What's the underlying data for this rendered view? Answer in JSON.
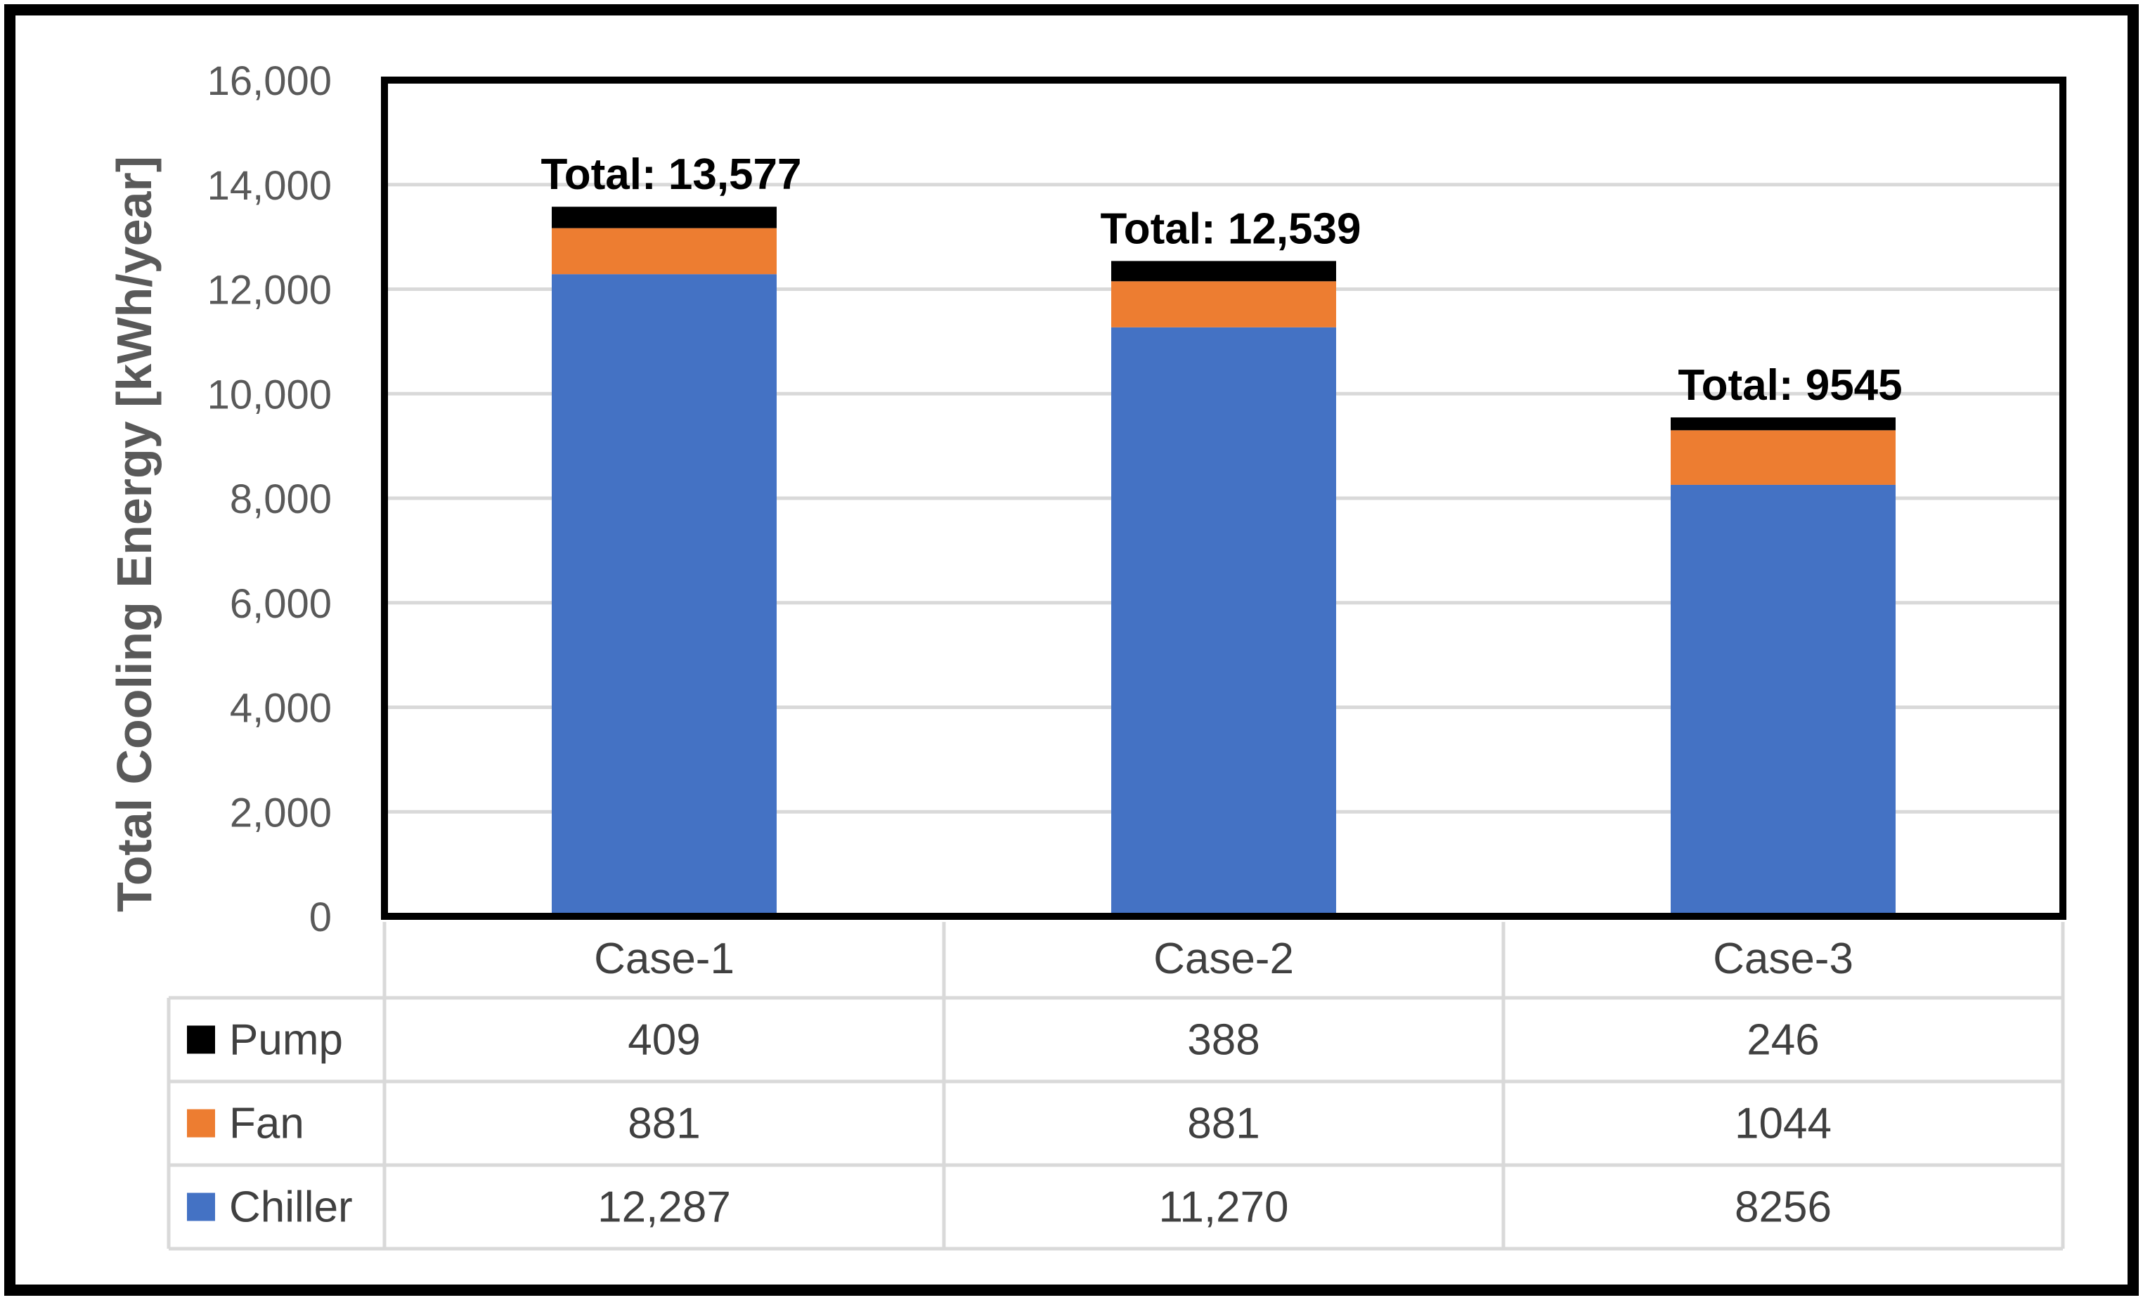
{
  "chart_data": {
    "type": "bar",
    "stacked": true,
    "ylabel": "Total Cooling Energy [kWh/year]",
    "ylim": [
      0,
      16000
    ],
    "yticks": [
      0,
      2000,
      4000,
      6000,
      8000,
      10000,
      12000,
      14000,
      16000
    ],
    "ytick_labels": [
      "0",
      "2,000",
      "4,000",
      "6,000",
      "8,000",
      "10,000",
      "12,000",
      "14,000",
      "16,000"
    ],
    "grid": true,
    "categories": [
      "Case-1",
      "Case-2",
      "Case-3"
    ],
    "series": [
      {
        "name": "Chiller",
        "color": "#4472C4",
        "values": [
          12287,
          11270,
          8256
        ],
        "labels": [
          "12,287",
          "11,270",
          "8256"
        ]
      },
      {
        "name": "Fan",
        "color": "#ED7D31",
        "values": [
          881,
          881,
          1044
        ],
        "labels": [
          "881",
          "881",
          "1044"
        ]
      },
      {
        "name": "Pump",
        "color": "#000000",
        "values": [
          409,
          388,
          246
        ],
        "labels": [
          "409",
          "388",
          "246"
        ]
      }
    ],
    "totals": [
      "Total: 13,577",
      "Total: 12,539",
      "Total: 9545"
    ],
    "table_row_order": [
      "Pump",
      "Fan",
      "Chiller"
    ],
    "legend": "data-table-left"
  }
}
